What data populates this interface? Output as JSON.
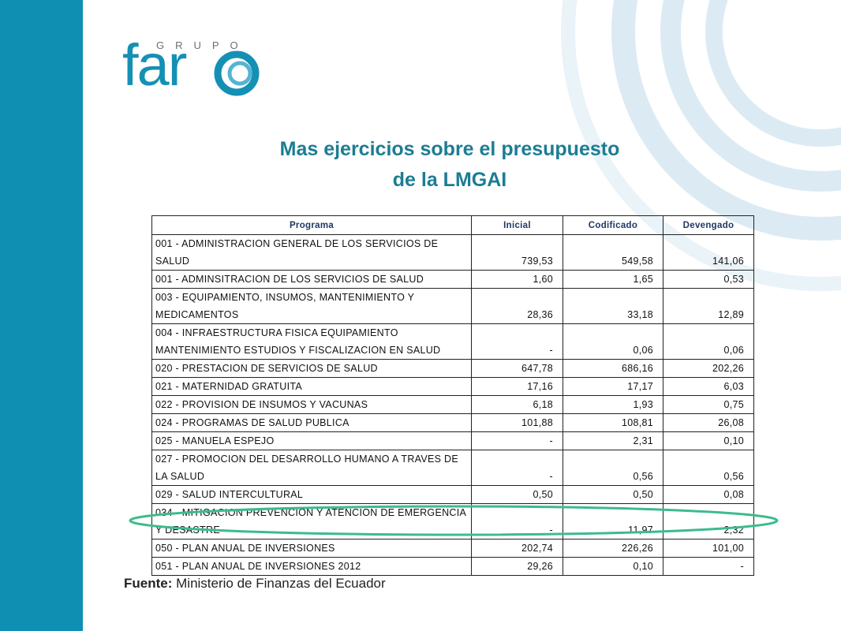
{
  "logo": {
    "top": "GRUPO",
    "word": "far"
  },
  "title": {
    "line1": "Mas ejercicios sobre el presupuesto",
    "line2": "de la LMGAI"
  },
  "table": {
    "columns": [
      "Programa",
      "Inicial",
      "Codificado",
      "Devengado"
    ],
    "rows": [
      [
        "001 - ADMINISTRACION GENERAL DE LOS SERVICIOS DE SALUD",
        "739,53",
        "549,58",
        "141,06"
      ],
      [
        "001 - ADMINSITRACION DE LOS SERVICIOS DE SALUD",
        "1,60",
        "1,65",
        "0,53"
      ],
      [
        "003 - EQUIPAMIENTO, INSUMOS, MANTENIMIENTO Y MEDICAMENTOS",
        "28,36",
        "33,18",
        "12,89"
      ],
      [
        "004 - INFRAESTRUCTURA FISICA EQUIPAMIENTO MANTENIMIENTO ESTUDIOS Y FISCALIZACION EN SALUD",
        "-",
        "0,06",
        "0,06"
      ],
      [
        "020 - PRESTACION DE SERVICIOS DE SALUD",
        "647,78",
        "686,16",
        "202,26"
      ],
      [
        "021 - MATERNIDAD GRATUITA",
        "17,16",
        "17,17",
        "6,03"
      ],
      [
        "022 - PROVISION DE INSUMOS Y VACUNAS",
        "6,18",
        "1,93",
        "0,75"
      ],
      [
        "024 - PROGRAMAS DE SALUD PUBLICA",
        "101,88",
        "108,81",
        "26,08"
      ],
      [
        "025 - MANUELA ESPEJO",
        "-",
        "2,31",
        "0,10"
      ],
      [
        "027 - PROMOCION DEL DESARROLLO HUMANO A TRAVES DE LA SALUD",
        "-",
        "0,56",
        "0,56"
      ],
      [
        "029 - SALUD INTERCULTURAL",
        "0,50",
        "0,50",
        "0,08"
      ],
      [
        "034 - MITIGACION PREVENCION Y ATENCION DE EMERGENCIA Y DESASTRE",
        "-",
        "11,97",
        "2,32"
      ],
      [
        "050 - PLAN ANUAL DE INVERSIONES",
        "202,74",
        "226,26",
        "101,00"
      ],
      [
        "051 - PLAN ANUAL DE INVERSIONES 2012",
        "29,26",
        "0,10",
        "-"
      ]
    ]
  },
  "source": {
    "label": "Fuente:",
    "text": "Ministerio de Finanzas del Ecuador"
  }
}
